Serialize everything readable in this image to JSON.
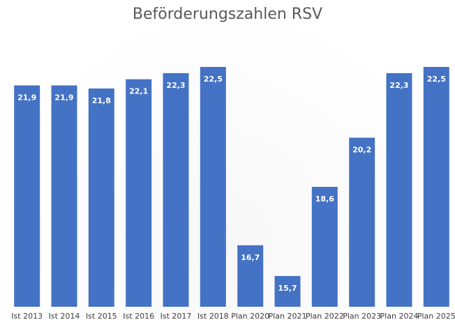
{
  "chart_data": {
    "type": "bar",
    "title": "Beförderungszahlen RSV",
    "xlabel": "",
    "ylabel": "",
    "ylim": [
      14.7,
      23
    ],
    "grid": false,
    "legend": "none",
    "bar_color": "#4472c4",
    "label_color": "#ffffff",
    "categories": [
      "Ist 2013",
      "Ist 2014",
      "Ist 2015",
      "Ist 2016",
      "Ist 2017",
      "Ist 2018",
      "Plan 2020",
      "Plan 2021",
      "Plan 2022",
      "Plan 2023",
      "Plan 2024",
      "Plan 2025"
    ],
    "values": [
      21.9,
      21.9,
      21.8,
      22.1,
      22.3,
      22.5,
      16.7,
      15.7,
      18.6,
      20.2,
      22.3,
      22.5
    ],
    "data_labels": [
      "21,9",
      "21,9",
      "21,8",
      "22,1",
      "22,3",
      "22,5",
      "16,7",
      "15,7",
      "18,6",
      "20,2",
      "22,3",
      "22,5"
    ]
  }
}
